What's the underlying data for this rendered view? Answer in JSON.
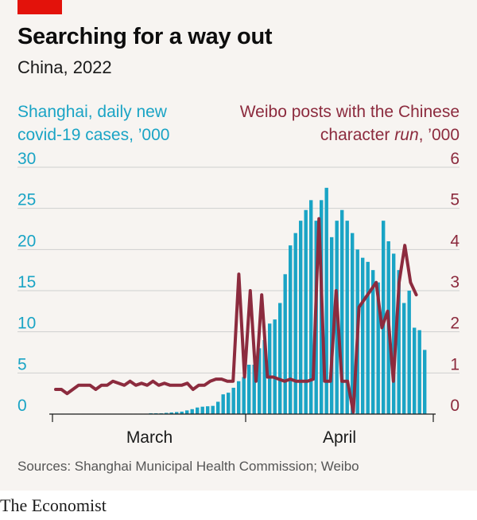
{
  "header": {
    "title": "Searching for a way out",
    "subtitle": "China, 2022"
  },
  "footer": {
    "source": "Sources: Shanghai Municipal Health Commission; Weibo",
    "brand": "The Economist"
  },
  "colors": {
    "bars": "#1aa4c5",
    "line": "#8c2b3e",
    "grid": "#cfcfcf"
  },
  "chart_data": {
    "type": "bar",
    "left_axis_label": {
      "pre": "Shanghai, daily new covid-19 cases, ’000",
      "lines": [
        "Shanghai, daily new",
        "covid-19 cases, ’000"
      ]
    },
    "right_axis_label": {
      "lines": [
        "Weibo posts with the Chinese",
        "character ",
        "run",
        ", ’000"
      ]
    },
    "y_left": {
      "ylim": [
        0,
        30
      ],
      "ticks": [
        "0",
        "5",
        "10",
        "15",
        "20",
        "25",
        "30"
      ]
    },
    "y_right": {
      "ylim": [
        0,
        6
      ],
      "ticks": [
        "0",
        "1",
        "2",
        "3",
        "4",
        "5",
        "6"
      ]
    },
    "x_ticks": [
      "March",
      "April"
    ],
    "grid": true,
    "bars": {
      "name": "Shanghai, daily new covid-19 cases, ’000",
      "values": [
        0.05,
        0.05,
        0.05,
        0.05,
        0.05,
        0.05,
        0.05,
        0.05,
        0.05,
        0.05,
        0.05,
        0.05,
        0.05,
        0.05,
        0.05,
        0.05,
        0.05,
        0.05,
        0.05,
        0.1,
        0.1,
        0.1,
        0.15,
        0.2,
        0.25,
        0.3,
        0.45,
        0.6,
        0.8,
        0.9,
        0.95,
        1.0,
        1.5,
        2.4,
        2.6,
        3.2,
        4.0,
        4.5,
        6.0,
        6.0,
        8.0,
        9.0,
        11.0,
        11.5,
        13.5,
        17.0,
        20.5,
        22.0,
        23.5,
        24.8,
        26.0,
        23.5,
        26.0,
        27.5,
        21.5,
        23.5,
        24.8,
        23.5,
        22.0,
        20.0,
        19.0,
        18.5,
        17.5,
        16.0,
        23.5,
        21.0,
        19.5,
        17.5,
        13.5,
        15.0,
        10.5,
        10.2,
        7.8
      ]
    },
    "line": {
      "name": "Weibo posts with the Chinese character run, ’000",
      "values": [
        0.6,
        0.6,
        0.5,
        0.6,
        0.7,
        0.7,
        0.7,
        0.6,
        0.7,
        0.7,
        0.8,
        0.75,
        0.7,
        0.8,
        0.7,
        0.75,
        0.7,
        0.8,
        0.7,
        0.75,
        0.7,
        0.7,
        0.7,
        0.75,
        0.6,
        0.7,
        0.7,
        0.8,
        0.85,
        0.85,
        0.8,
        0.8,
        3.4,
        0.9,
        3.0,
        0.8,
        2.9,
        0.9,
        0.9,
        0.85,
        0.8,
        0.85,
        0.8,
        0.8,
        0.8,
        0.85,
        4.75,
        0.8,
        0.8,
        3.0,
        0.8,
        0.8,
        0.05,
        2.6,
        2.8,
        3.0,
        3.2,
        2.1,
        2.5,
        0.8,
        3.2,
        4.1,
        3.2,
        2.9
      ]
    }
  }
}
